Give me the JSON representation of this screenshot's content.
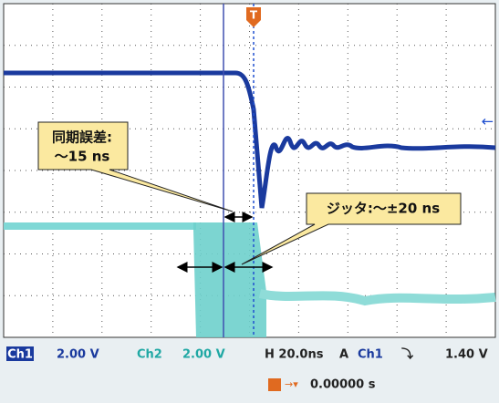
{
  "screen": {
    "trigger_marker": "T",
    "callouts": [
      {
        "lines": [
          "同期誤差:",
          "～15 ns"
        ]
      },
      {
        "lines": [
          "ジッタ:～±20 ns"
        ]
      }
    ],
    "status": {
      "ch1_label": "Ch1",
      "ch1_scale": "2.00 V",
      "ch2_label": "Ch2",
      "ch2_scale": "2.00 V",
      "horizontal": "H 20.0ns",
      "trigger_mode": "A",
      "trigger_source": "Ch1",
      "trigger_level": "1.40 V",
      "trigger_position": "0.00000 s"
    }
  }
}
